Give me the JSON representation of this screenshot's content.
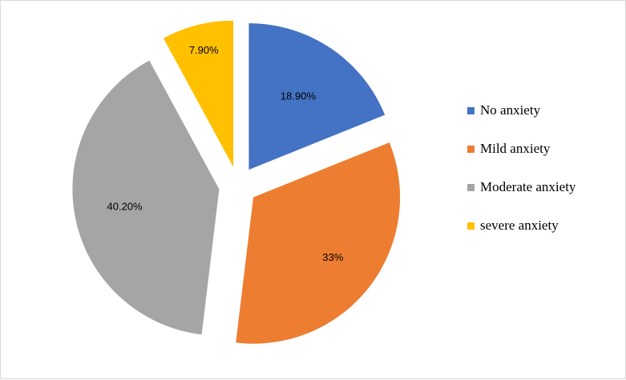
{
  "chart_data": {
    "type": "pie",
    "exploded": true,
    "start_angle_deg": 0,
    "direction": "clockwise",
    "slices": [
      {
        "name": "No anxiety",
        "value": 18.9,
        "label": "18.90%",
        "color": "#4472C4"
      },
      {
        "name": "Mild anxiety",
        "value": 33.0,
        "label": "33%",
        "color": "#ED7D31"
      },
      {
        "name": "Moderate anxiety",
        "value": 40.2,
        "label": "40.20%",
        "color": "#A5A5A5"
      },
      {
        "name": "severe anxiety",
        "value": 7.9,
        "label": "7.90%",
        "color": "#FFC000"
      }
    ],
    "legend_position": "right"
  }
}
